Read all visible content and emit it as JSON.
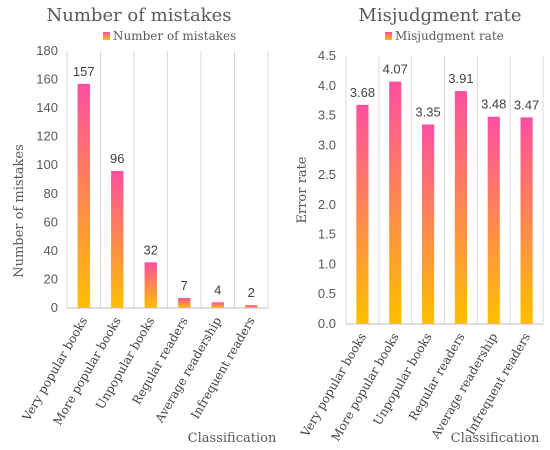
{
  "chart_data": [
    {
      "type": "bar",
      "title": "Number of mistakes",
      "legend": [
        "Number of mistakes"
      ],
      "legend_position": "top",
      "xlabel": "Classification",
      "ylabel": "Number of mistakes",
      "ylim": [
        0,
        180
      ],
      "ytick_step": 20,
      "ytick_decimals": 0,
      "grid": "vertical separators",
      "categories": [
        "Very popular books",
        "More popular books",
        "Unpopular books",
        "Regular readers",
        "Average readership",
        "Infrequent readers"
      ],
      "values": [
        157,
        96,
        32,
        7,
        4,
        2
      ],
      "data_labels": [
        "157",
        "96",
        "32",
        "7",
        "4",
        "2"
      ]
    },
    {
      "type": "bar",
      "title": "Misjudgment rate",
      "legend": [
        "Misjudgment rate"
      ],
      "legend_position": "top",
      "xlabel": "Classification",
      "ylabel": "Error rate",
      "ylim": [
        0,
        4.5
      ],
      "ytick_step": 0.5,
      "ytick_decimals": 1,
      "grid": "vertical separators",
      "categories": [
        "Very popular books",
        "More popular books",
        "Unpopular books",
        "Regular readers",
        "Average readership",
        "Infrequent readers"
      ],
      "values": [
        3.68,
        4.07,
        3.35,
        3.91,
        3.48,
        3.47
      ],
      "data_labels": [
        "3.68",
        "4.07",
        "3.35",
        "3.91",
        "3.48",
        "3.47"
      ]
    }
  ],
  "colors": {
    "bar_top": "#ff4fa0",
    "bar_bottom": "#ffc000"
  }
}
